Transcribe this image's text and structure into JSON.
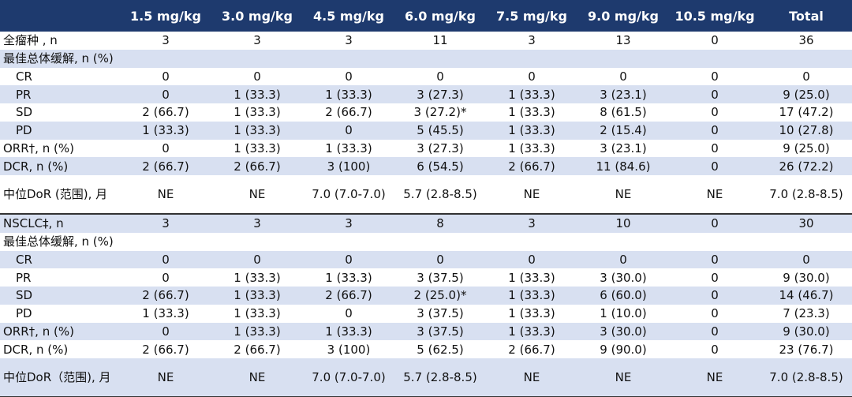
{
  "table": {
    "header": [
      "1.5 mg/kg",
      "3.0 mg/kg",
      "4.5 mg/kg",
      "6.0 mg/kg",
      "7.5 mg/kg",
      "9.0 mg/kg",
      "10.5 mg/kg",
      "Total"
    ],
    "rows": [
      {
        "label": "全瘤种 , n",
        "cells": [
          "3",
          "3",
          "3",
          "11",
          "3",
          "13",
          "0",
          "36"
        ]
      },
      {
        "label": "最佳总体缓解, n (%)"
      },
      {
        "label": "CR",
        "cells": [
          "0",
          "0",
          "0",
          "0",
          "0",
          "0",
          "0",
          "0"
        ]
      },
      {
        "label": "PR",
        "cells": [
          "0",
          "1 (33.3)",
          "1 (33.3)",
          "3 (27.3)",
          "1 (33.3)",
          "3 (23.1)",
          "0",
          "9 (25.0)"
        ]
      },
      {
        "label": "SD",
        "cells": [
          "2 (66.7)",
          "1 (33.3)",
          "2 (66.7)",
          "3 (27.2)*",
          "1 (33.3)",
          "8 (61.5)",
          "0",
          "17 (47.2)"
        ]
      },
      {
        "label": "PD",
        "cells": [
          "1 (33.3)",
          "1 (33.3)",
          "0",
          "5 (45.5)",
          "1 (33.3)",
          "2 (15.4)",
          "0",
          "10 (27.8)"
        ]
      },
      {
        "label": "ORR†, n (%)",
        "cells": [
          "0",
          "1 (33.3)",
          "1 (33.3)",
          "3 (27.3)",
          "1 (33.3)",
          "3 (23.1)",
          "0",
          "9 (25.0)"
        ]
      },
      {
        "label": "DCR, n (%)",
        "cells": [
          "2 (66.7)",
          "2 (66.7)",
          "3 (100)",
          "6 (54.5)",
          "2 (66.7)",
          "11 (84.6)",
          "0",
          "26 (72.2)"
        ]
      },
      {
        "label": "中位DoR (范围), 月",
        "cells": [
          "NE",
          "NE",
          "7.0 (7.0-7.0)",
          "5.7 (2.8-8.5)",
          "NE",
          "NE",
          "NE",
          "7.0 (2.8-8.5)"
        ]
      },
      {
        "label": "NSCLC‡, n",
        "cells": [
          "3",
          "3",
          "3",
          "8",
          "3",
          "10",
          "0",
          "30"
        ]
      },
      {
        "label": "最佳总体缓解, n (%)"
      },
      {
        "label": "CR",
        "cells": [
          "0",
          "0",
          "0",
          "0",
          "0",
          "0",
          "0",
          "0"
        ]
      },
      {
        "label": "PR",
        "cells": [
          "0",
          "1 (33.3)",
          "1 (33.3)",
          "3 (37.5)",
          "1 (33.3)",
          "3 (30.0)",
          "0",
          "9 (30.0)"
        ]
      },
      {
        "label": "SD",
        "cells": [
          "2 (66.7)",
          "1 (33.3)",
          "2 (66.7)",
          "2 (25.0)*",
          "1 (33.3)",
          "6 (60.0)",
          "0",
          "14 (46.7)"
        ]
      },
      {
        "label": "PD",
        "cells": [
          "1 (33.3)",
          "1 (33.3)",
          "0",
          "3 (37.5)",
          "1 (33.3)",
          "1 (10.0)",
          "0",
          "7 (23.3)"
        ]
      },
      {
        "label": "ORR†, n (%)",
        "cells": [
          "0",
          "1 (33.3)",
          "1 (33.3)",
          "3 (37.5)",
          "1 (33.3)",
          "3 (30.0)",
          "0",
          "9 (30.0)"
        ]
      },
      {
        "label": "DCR, n (%)",
        "cells": [
          "2 (66.7)",
          "2 (66.7)",
          "3 (100)",
          "5 (62.5)",
          "2 (66.7)",
          "9 (90.0)",
          "0",
          "23 (76.7)"
        ]
      },
      {
        "label": "中位DoR（范围), 月",
        "cells": [
          "NE",
          "NE",
          "7.0 (7.0-7.0)",
          "5.7 (2.8-8.5)",
          "NE",
          "NE",
          "NE",
          "7.0 (2.8-8.5)"
        ]
      }
    ]
  }
}
